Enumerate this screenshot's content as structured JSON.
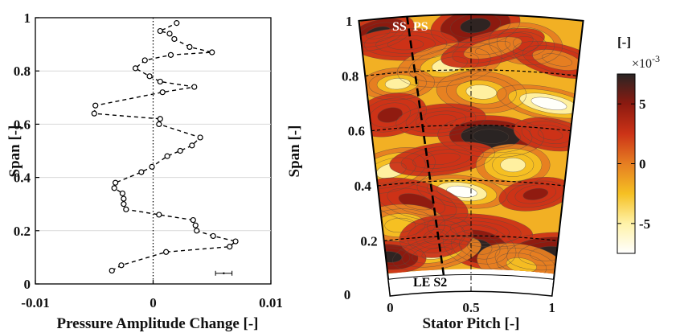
{
  "chart_data": [
    {
      "type": "line",
      "xlabel": "Pressure Amplitude Change [-]",
      "ylabel": "Span [-]",
      "xlim": [
        -0.01,
        0.01
      ],
      "ylim": [
        0,
        1
      ],
      "xticks": [
        "-0.01",
        "0",
        "0.01"
      ],
      "yticks": [
        "0",
        "0.2",
        "0.4",
        "0.6",
        "0.8",
        "1"
      ],
      "grid": "horizontal",
      "error_bar_half_width": 0.0007,
      "series": [
        {
          "style": "dashed line with open circle markers",
          "points": [
            {
              "x": -0.0035,
              "y": 0.05
            },
            {
              "x": -0.0027,
              "y": 0.07
            },
            {
              "x": 0.0011,
              "y": 0.12
            },
            {
              "x": 0.0065,
              "y": 0.14
            },
            {
              "x": 0.007,
              "y": 0.16
            },
            {
              "x": 0.0051,
              "y": 0.18
            },
            {
              "x": 0.0037,
              "y": 0.2
            },
            {
              "x": 0.0036,
              "y": 0.22
            },
            {
              "x": 0.0034,
              "y": 0.24
            },
            {
              "x": 0.0005,
              "y": 0.26
            },
            {
              "x": -0.0023,
              "y": 0.28
            },
            {
              "x": -0.0025,
              "y": 0.3
            },
            {
              "x": -0.0025,
              "y": 0.32
            },
            {
              "x": -0.0026,
              "y": 0.34
            },
            {
              "x": -0.0033,
              "y": 0.36
            },
            {
              "x": -0.0032,
              "y": 0.38
            },
            {
              "x": -0.001,
              "y": 0.42
            },
            {
              "x": -0.0001,
              "y": 0.44
            },
            {
              "x": 0.0012,
              "y": 0.48
            },
            {
              "x": 0.0023,
              "y": 0.5
            },
            {
              "x": 0.0033,
              "y": 0.52
            },
            {
              "x": 0.004,
              "y": 0.55
            },
            {
              "x": 0.0005,
              "y": 0.6
            },
            {
              "x": 0.0006,
              "y": 0.62
            },
            {
              "x": -0.005,
              "y": 0.64
            },
            {
              "x": -0.0049,
              "y": 0.67
            },
            {
              "x": 0.0008,
              "y": 0.72
            },
            {
              "x": 0.0035,
              "y": 0.74
            },
            {
              "x": 0.0006,
              "y": 0.76
            },
            {
              "x": -0.0003,
              "y": 0.78
            },
            {
              "x": -0.0015,
              "y": 0.81
            },
            {
              "x": -0.0007,
              "y": 0.84
            },
            {
              "x": 0.0015,
              "y": 0.86
            },
            {
              "x": 0.005,
              "y": 0.87
            },
            {
              "x": 0.0031,
              "y": 0.89
            },
            {
              "x": 0.0018,
              "y": 0.92
            },
            {
              "x": 0.0014,
              "y": 0.94
            },
            {
              "x": 0.0006,
              "y": 0.95
            },
            {
              "x": 0.002,
              "y": 0.98
            }
          ]
        }
      ]
    },
    {
      "type": "heatmap",
      "xlabel": "Stator Pitch [-]",
      "ylabel": "Span [-]",
      "xlim": [
        0,
        1
      ],
      "ylim": [
        0,
        1
      ],
      "xticks": [
        "0",
        "0.5",
        "1"
      ],
      "yticks": [
        "0.2",
        "0.4",
        "0.6",
        "0.8",
        "1"
      ],
      "colorbar": {
        "unit": "[-]",
        "multiplier": "×10",
        "multiplier_exp": "-3",
        "ticks": [
          "5",
          "0",
          "-5"
        ],
        "range": [
          -7.5,
          7.5
        ],
        "colormap": [
          "#ffffff",
          "#fff2a8",
          "#f5c023",
          "#e67e22",
          "#cc3317",
          "#8c1a10",
          "#2a2524"
        ]
      },
      "annotations": {
        "ss": "SS",
        "ps": "PS",
        "le": "LE S2",
        "zero_y": "0"
      },
      "features": [
        {
          "pitch": 0.08,
          "span": 0.95,
          "value": 7
        },
        {
          "pitch": 0.52,
          "span": 0.96,
          "value": 7
        },
        {
          "pitch": 0.2,
          "span": 0.9,
          "value": 2
        },
        {
          "pitch": 0.75,
          "span": 0.9,
          "value": -5
        },
        {
          "pitch": 0.9,
          "span": 0.85,
          "value": 1
        },
        {
          "pitch": 0.4,
          "span": 0.82,
          "value": -4
        },
        {
          "pitch": 0.15,
          "span": 0.76,
          "value": -4
        },
        {
          "pitch": 0.55,
          "span": 0.72,
          "value": -4
        },
        {
          "pitch": 0.88,
          "span": 0.69,
          "value": -7
        },
        {
          "pitch": 0.1,
          "span": 0.65,
          "value": 4
        },
        {
          "pitch": 0.35,
          "span": 0.62,
          "value": 3
        },
        {
          "pitch": 0.6,
          "span": 0.56,
          "value": 8
        },
        {
          "pitch": 0.9,
          "span": 0.58,
          "value": 3
        },
        {
          "pitch": 0.08,
          "span": 0.45,
          "value": -5
        },
        {
          "pitch": 0.35,
          "span": 0.48,
          "value": 3
        },
        {
          "pitch": 0.72,
          "span": 0.46,
          "value": -5
        },
        {
          "pitch": 0.45,
          "span": 0.36,
          "value": -8
        },
        {
          "pitch": 0.2,
          "span": 0.33,
          "value": 4
        },
        {
          "pitch": 0.85,
          "span": 0.36,
          "value": 4
        },
        {
          "pitch": 0.1,
          "span": 0.25,
          "value": -3
        },
        {
          "pitch": 0.55,
          "span": 0.22,
          "value": 3
        },
        {
          "pitch": 0.55,
          "span": 0.16,
          "value": 7
        },
        {
          "pitch": 0.3,
          "span": 0.14,
          "value": -4
        },
        {
          "pitch": 0.95,
          "span": 0.15,
          "value": 7
        },
        {
          "pitch": 0.02,
          "span": 0.14,
          "value": 7
        },
        {
          "pitch": 0.8,
          "span": 0.1,
          "value": -2
        },
        {
          "pitch": 0.6,
          "span": 0.88,
          "value": 1
        },
        {
          "pitch": 0.3,
          "span": 0.2,
          "value": 2
        }
      ]
    }
  ]
}
